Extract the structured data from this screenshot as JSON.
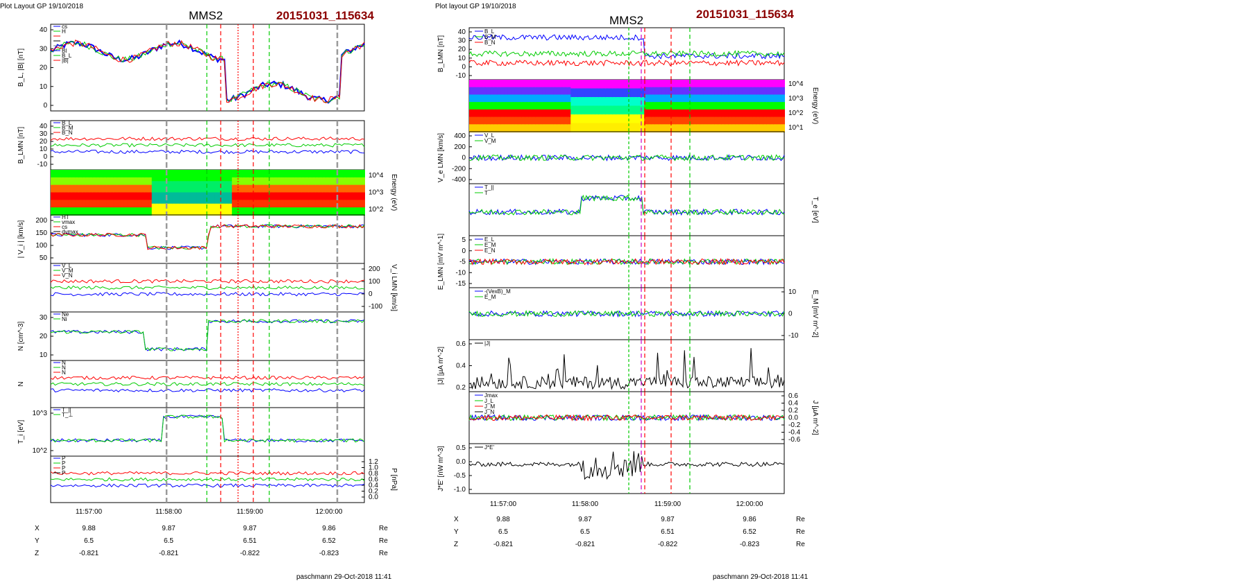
{
  "header": {
    "left_label": "Plot Layout GP 19/10/2018",
    "right_label": "Plot layout GP 19/10/2018",
    "title": "MMS2",
    "id": "20151031_115634"
  },
  "footer": {
    "left": "paschmann 29-Oct-2018 11:41",
    "right": "paschmann 29-Oct-2018 11:41"
  },
  "time_axis": [
    "11:57:00",
    "11:58:00",
    "11:59:00",
    "12:00:00"
  ],
  "positions": {
    "rows": [
      {
        "label": "X",
        "values": [
          "9.88",
          "9.87",
          "9.87",
          "9.86"
        ],
        "unit": "Re"
      },
      {
        "label": "Y",
        "values": [
          "6.5",
          "6.5",
          "6.51",
          "6.52"
        ],
        "unit": "Re"
      },
      {
        "label": "Z",
        "values": [
          "-0.821",
          "-0.821",
          "-0.822",
          "-0.823"
        ],
        "unit": "Re"
      }
    ]
  },
  "colors": {
    "blue": "#0000ff",
    "red": "#ff0000",
    "green": "#00cc00",
    "black": "#000000",
    "gray": "#808080",
    "magenta": "#cc00cc",
    "darkred": "#8b0000"
  },
  "chart_data": [
    {
      "panel": "left",
      "type": "line",
      "ylabel": "B_L, |B| [nT]",
      "yticks": [
        "40",
        "30",
        "20",
        "10",
        "0"
      ],
      "legend": [
        "cs",
        "H",
        "",
        "",
        "",
        "Bl",
        "B_L",
        "|B|"
      ]
    },
    {
      "panel": "left",
      "type": "line",
      "ylabel": "B_LMN [nT]",
      "yticks": [
        "40",
        "30",
        "20",
        "10",
        "0",
        "-10"
      ],
      "legend": [
        "B_L",
        "B_M",
        "B_N"
      ]
    },
    {
      "panel": "left",
      "type": "heatmap",
      "ylabel": "Energy (eV)",
      "yticks": [
        "10^4",
        "10^3",
        "10^2"
      ]
    },
    {
      "panel": "left",
      "type": "line",
      "ylabel": "| V_i | [km/s]",
      "yticks": [
        "200",
        "150",
        "100",
        "50"
      ],
      "legend": [
        "HT",
        "vmax",
        "cs",
        "dvmax"
      ]
    },
    {
      "panel": "left",
      "type": "line",
      "ylabel": "V_i LMN [km/s]",
      "yticks": [
        "200",
        "100",
        "0",
        "-100"
      ],
      "legend": [
        "V_L",
        "V_M",
        "V_N"
      ]
    },
    {
      "panel": "left",
      "type": "line",
      "ylabel": "N [cm^-3]",
      "yticks": [
        "30",
        "20",
        "10"
      ],
      "legend": [
        "Ne",
        "Ni"
      ]
    },
    {
      "panel": "left",
      "type": "line",
      "ylabel": "N",
      "yticks": [],
      "legend": [
        "N",
        "N",
        "N"
      ]
    },
    {
      "panel": "left",
      "type": "line",
      "ylabel": "T_i [eV]",
      "yticks": [
        "10^3",
        "10^2"
      ],
      "legend": [
        "T_||",
        "T_⊥"
      ]
    },
    {
      "panel": "left",
      "type": "line",
      "ylabel": "P [nPa]",
      "yticks": [
        "1.2",
        "1.0",
        "0.8",
        "0.6",
        "0.4",
        "0.2",
        "0.0"
      ],
      "legend": [
        "P",
        "P",
        "P",
        "P"
      ]
    },
    {
      "panel": "right",
      "type": "line",
      "ylabel": "B_LMN [nT]",
      "yticks": [
        "40",
        "30",
        "20",
        "10",
        "0",
        "-10"
      ],
      "legend": [
        "B_L",
        "B_M",
        "B_N"
      ]
    },
    {
      "panel": "right",
      "type": "heatmap",
      "ylabel": "Energy (eV)",
      "yticks": [
        "10^4",
        "10^3",
        "10^2",
        "10^1"
      ]
    },
    {
      "panel": "right",
      "type": "line",
      "ylabel": "V_e LMN [km/s]",
      "yticks": [
        "400",
        "200",
        "0",
        "-200",
        "-400"
      ],
      "legend": [
        "V_L",
        "V_M"
      ]
    },
    {
      "panel": "right",
      "type": "line",
      "ylabel": "T_e [eV]",
      "yticks": [],
      "legend": [
        "T_||",
        "T"
      ]
    },
    {
      "panel": "right",
      "type": "line",
      "ylabel": "E_LMN [mV m^-1]",
      "yticks": [
        "5",
        "0",
        "-5",
        "-10",
        "-15"
      ],
      "legend": [
        "E_L",
        "E_M",
        "E_N"
      ]
    },
    {
      "panel": "right",
      "type": "line",
      "ylabel": "E_M [mV m^-2]",
      "yticks": [
        "10",
        "0",
        "-10"
      ],
      "legend": [
        "-(VexB)_M",
        "E_M"
      ]
    },
    {
      "panel": "right",
      "type": "line",
      "ylabel": "|J| [µA m^-2]",
      "yticks": [
        "0.6",
        "0.4",
        "0.2"
      ],
      "legend": [
        "|J|"
      ]
    },
    {
      "panel": "right",
      "type": "line",
      "ylabel": "J [µA m^-2]",
      "yticks": [
        "0.6",
        "0.4",
        "0.2",
        "0.0",
        "-0.2",
        "-0.4",
        "-0.6"
      ],
      "legend": [
        "Jmax",
        "J_L",
        "J_M",
        "J_N"
      ]
    },
    {
      "panel": "right",
      "type": "line",
      "ylabel": "J*E' [nW m^-3]",
      "yticks": [
        "0.5",
        "0.0",
        "-0.5",
        "-1.0"
      ],
      "legend": [
        "J*E'"
      ]
    }
  ]
}
